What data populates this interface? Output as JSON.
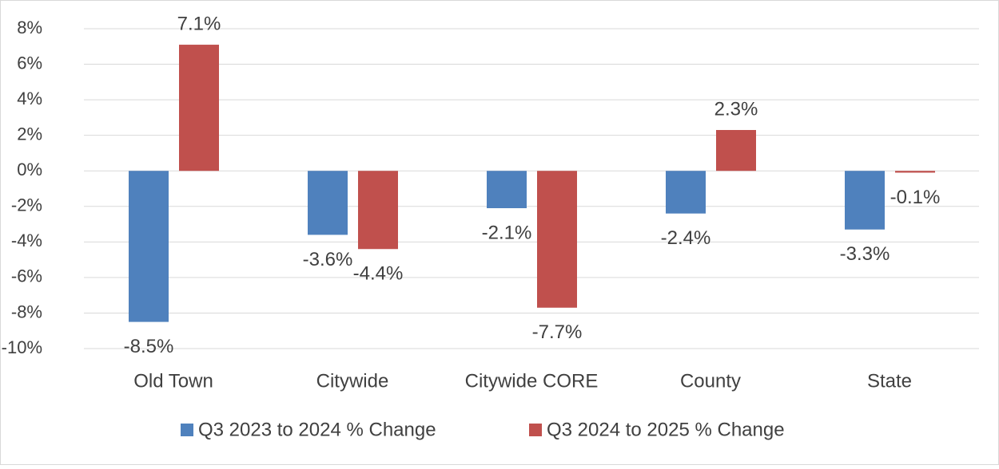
{
  "chart_data": {
    "type": "bar",
    "categories": [
      "Old Town",
      "Citywide",
      "Citywide CORE",
      "County",
      "State"
    ],
    "series": [
      {
        "name": "Q3 2023 to 2024 % Change",
        "color": "#4f81bd",
        "values": [
          -8.5,
          -3.6,
          -2.1,
          -2.4,
          -3.3
        ],
        "value_labels": [
          "-8.5%",
          "-3.6%",
          "-2.1%",
          "-2.4%",
          "-3.3%"
        ]
      },
      {
        "name": "Q3 2024 to 2025 % Change",
        "color": "#c0504d",
        "values": [
          7.1,
          -4.4,
          -7.7,
          2.3,
          -0.1
        ],
        "value_labels": [
          "7.1%",
          "-4.4%",
          "-7.7%",
          "2.3%",
          "-0.1%"
        ]
      }
    ],
    "ylim": [
      -10,
      8
    ],
    "yticks": [
      {
        "value": -10,
        "label": "-10%"
      },
      {
        "value": -8,
        "label": "-8%"
      },
      {
        "value": -6,
        "label": "-6%"
      },
      {
        "value": -4,
        "label": "-4%"
      },
      {
        "value": -2,
        "label": "-2%"
      },
      {
        "value": 0,
        "label": "0%"
      },
      {
        "value": 2,
        "label": "2%"
      },
      {
        "value": 4,
        "label": "4%"
      },
      {
        "value": 6,
        "label": "6%"
      },
      {
        "value": 8,
        "label": "8%"
      }
    ],
    "grid": true,
    "legend": "bottom"
  }
}
